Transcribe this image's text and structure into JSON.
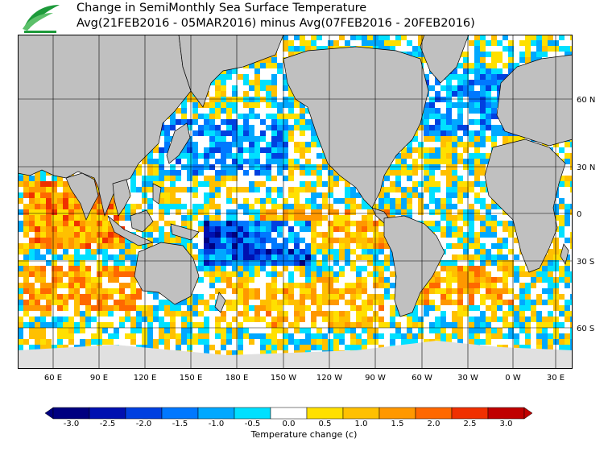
{
  "header": {
    "title_line1": "Change in SemiMonthly Sea Surface Temperature",
    "title_line2": "Avg(21FEB2016 - 05MAR2016) minus Avg(07FEB2016 - 20FEB2016)"
  },
  "map": {
    "lat_labels": [
      "60 N",
      "30 N",
      "0",
      "30 S",
      "60 S"
    ],
    "lon_labels": [
      "60 E",
      "90 E",
      "120 E",
      "150 E",
      "180 E",
      "150 W",
      "120 W",
      "90 W",
      "60 W",
      "30 W",
      "0 W",
      "30 E"
    ],
    "colors": {
      "land": "#c0c0c0",
      "ice": "#e0e0e0",
      "grid": "#000000"
    }
  },
  "colorbar": {
    "ticks": [
      "-3.0",
      "-2.5",
      "-2.0",
      "-1.5",
      "-1.0",
      "-0.5",
      "0.0",
      "0.5",
      "1.0",
      "1.5",
      "2.0",
      "2.5",
      "3.0"
    ],
    "colors": [
      "#000080",
      "#0010b0",
      "#0040e0",
      "#0078ff",
      "#00a8ff",
      "#00e0ff",
      "#ffffff",
      "#ffe000",
      "#ffc000",
      "#ff9800",
      "#ff6800",
      "#f03000",
      "#c00000"
    ],
    "label": "Temperature change  (c)"
  }
}
